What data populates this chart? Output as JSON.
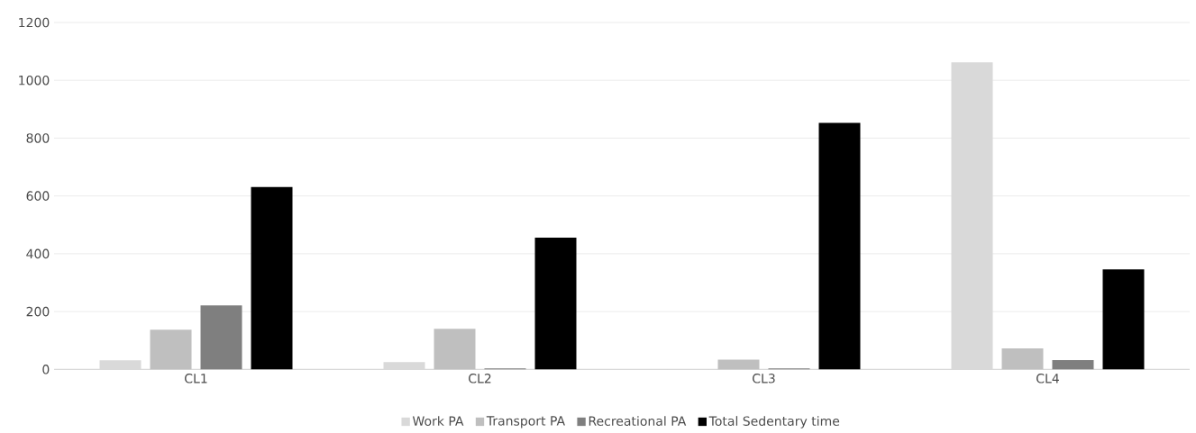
{
  "chart_data": {
    "type": "bar",
    "categories": [
      "CL1",
      "CL2",
      "CL3",
      "CL4"
    ],
    "series": [
      {
        "name": "Work PA",
        "color": "#d9d9d9",
        "values": [
          31,
          25,
          1,
          1062
        ]
      },
      {
        "name": "Transport PA",
        "color": "#bfbfbf",
        "values": [
          137,
          140,
          34,
          73
        ]
      },
      {
        "name": "Recreational PA",
        "color": "#7f7f7f",
        "values": [
          221,
          3,
          3,
          32
        ]
      },
      {
        "name": "Total Sedentary time",
        "color": "#000000",
        "values": [
          631,
          456,
          853,
          346
        ]
      }
    ],
    "ylim": [
      0,
      1200
    ],
    "yticks": [
      0,
      200,
      400,
      600,
      800,
      1000,
      1200
    ],
    "grid": "y",
    "legend": "bottom"
  }
}
